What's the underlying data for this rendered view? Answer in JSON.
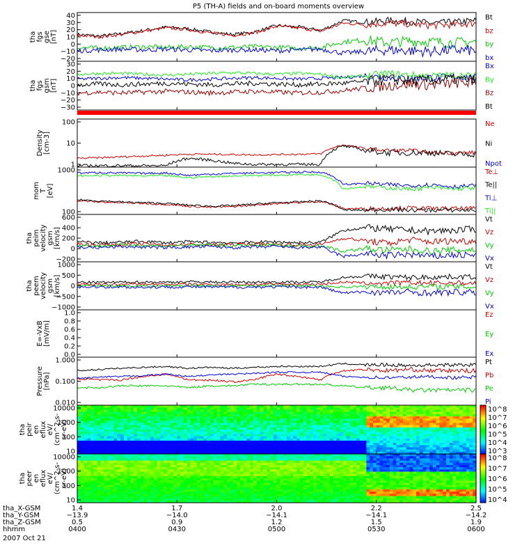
{
  "title": "P5 (TH-A) fields and on-board moments overview",
  "date_label": "2007 Oct 21",
  "colors": {
    "black": "#000000",
    "red": "#cc0000",
    "green": "#00cc00",
    "blue": "#0000dd",
    "darkred": "#990000",
    "bright_green": "#22ee22",
    "separator": "#ff0000"
  },
  "chart_data": [
    {
      "id": "fgs_gse",
      "type": "line",
      "ylabel": [
        "tha",
        "fgs",
        "gse",
        "[nT]"
      ],
      "ylim": [
        -20,
        40
      ],
      "yticks": [
        "40",
        "30",
        "20",
        "10",
        "0",
        "−10",
        "−20"
      ],
      "series": [
        {
          "name": "Bt",
          "color": "#000000",
          "baseline": [
            13,
            11,
            14,
            18,
            22,
            20,
            16,
            13,
            16,
            24,
            22,
            18,
            30,
            28,
            30,
            29,
            27,
            28,
            30
          ],
          "jitter": 2
        },
        {
          "name": "bz",
          "color": "#cc0000",
          "baseline": [
            12,
            10,
            13,
            17,
            21,
            19,
            15,
            12,
            15,
            23,
            21,
            17,
            27,
            25,
            27,
            26,
            24,
            25,
            27
          ],
          "jitter": 2
        },
        {
          "name": "by",
          "color": "#00cc00",
          "baseline": [
            -3,
            -4,
            -3,
            -2,
            -3,
            -2,
            -3,
            -3,
            -2,
            -3,
            -4,
            -3,
            4,
            6,
            3,
            5,
            4,
            3,
            4
          ],
          "jitter": 3
        },
        {
          "name": "bx",
          "color": "#0000dd",
          "baseline": [
            -7,
            -6,
            -5,
            -6,
            -5,
            -6,
            -7,
            -6,
            -6,
            -7,
            -6,
            -5,
            -10,
            -8,
            -6,
            -7,
            -8,
            -6,
            -7
          ],
          "jitter": 3
        }
      ]
    },
    {
      "id": "fgs_gsm",
      "type": "line",
      "ylabel": [
        "tha",
        "fgs",
        "gsm",
        "[nT]"
      ],
      "ylim": [
        -30,
        30
      ],
      "yticks": [
        "30",
        "20",
        "10",
        "0",
        "−10",
        "−20",
        "−30"
      ],
      "series": [
        {
          "name": "Bx",
          "color": "#0000dd",
          "baseline": [
            8,
            9,
            10,
            9,
            8,
            7,
            8,
            9,
            10,
            9,
            8,
            9,
            10,
            12,
            10,
            9,
            10,
            11,
            10
          ],
          "jitter": 2
        },
        {
          "name": "By",
          "color": "#22ee22",
          "baseline": [
            14,
            15,
            15,
            14,
            13,
            14,
            15,
            16,
            15,
            14,
            15,
            14,
            10,
            12,
            15,
            13,
            12,
            13,
            12
          ],
          "jitter": 2
        },
        {
          "name": "Bz",
          "color": "#990000",
          "baseline": [
            -9,
            -8,
            -9,
            -8,
            -7,
            -8,
            -9,
            -8,
            -7,
            -8,
            -9,
            -8,
            -6,
            -3,
            0,
            2,
            1,
            3,
            4
          ],
          "jitter": 3
        },
        {
          "name": "Bt",
          "color": "#000000",
          "baseline": [
            1,
            2,
            1,
            2,
            3,
            2,
            1,
            2,
            3,
            2,
            1,
            2,
            3,
            5,
            8,
            6,
            7,
            8,
            7
          ],
          "jitter": 3
        }
      ]
    },
    {
      "id": "density",
      "type": "line",
      "log": true,
      "ylabel": [
        "Density",
        "[cm-3]"
      ],
      "ylim": [
        0.5,
        200
      ],
      "yticks": [
        "100",
        "10",
        "1"
      ],
      "series": [
        {
          "name": "Ne",
          "color": "#cc0000",
          "baseline": [
            1.5,
            1.6,
            1.8,
            2.0,
            2.2,
            2.5,
            2.5,
            2.4,
            2.3,
            2.4,
            2.5,
            2.6,
            8,
            5,
            4,
            4,
            3,
            3,
            3
          ],
          "jitter": 0.1
        },
        {
          "name": "Ni",
          "color": "#000000",
          "baseline": [
            0.6,
            0.6,
            0.6,
            0.6,
            0.6,
            1.5,
            1.2,
            0.8,
            0.7,
            0.7,
            0.7,
            0.7,
            7,
            4,
            3,
            3,
            3,
            2.5,
            2.5
          ],
          "jitter": 0.15
        },
        {
          "name": "Npot",
          "color": "#0000dd",
          "baseline": [],
          "jitter": 0
        }
      ]
    },
    {
      "id": "temperature",
      "type": "line",
      "log": true,
      "ylabel": [
        "mom",
        "T",
        "[eV]"
      ],
      "ylim": [
        30,
        8000
      ],
      "yticks": [
        "1000",
        "100"
      ],
      "series": [
        {
          "name": "Te⊥",
          "color": "#cc0000",
          "baseline": [
            150,
            130,
            120,
            110,
            100,
            80,
            70,
            75,
            90,
            110,
            120,
            140,
            60,
            60,
            60,
            65,
            60,
            60,
            60
          ],
          "jitter": 0.1
        },
        {
          "name": "Te||",
          "color": "#000000",
          "baseline": [
            170,
            150,
            130,
            120,
            110,
            90,
            80,
            85,
            100,
            120,
            130,
            150,
            50,
            50,
            55,
            50,
            50,
            50,
            50
          ],
          "jitter": 0.1
        },
        {
          "name": "Ti⊥",
          "color": "#0000dd",
          "baseline": [
            4000,
            4200,
            4000,
            3800,
            4000,
            3000,
            3500,
            3800,
            4000,
            4200,
            4400,
            4500,
            1000,
            1200,
            1000,
            900,
            1000,
            800,
            900
          ],
          "jitter": 0.1
        },
        {
          "name": "Ti||",
          "color": "#22ee22",
          "baseline": [
            2800,
            3000,
            3000,
            2800,
            2900,
            2300,
            2600,
            2800,
            3000,
            3100,
            3300,
            3300,
            600,
            800,
            700,
            600,
            700,
            600,
            700
          ],
          "jitter": 0.1
        }
      ]
    },
    {
      "id": "peim_velocity",
      "type": "line",
      "ylabel": [
        "tha",
        "peim",
        "velocity",
        "gsm",
        "[km/s]"
      ],
      "ylim": [
        -300,
        600
      ],
      "yticks": [
        "600",
        "400",
        "200",
        "0",
        "−200"
      ],
      "series": [
        {
          "name": "Vt",
          "color": "#000000",
          "baseline": [
            80,
            60,
            70,
            90,
            60,
            80,
            70,
            60,
            70,
            80,
            60,
            70,
            300,
            350,
            320,
            300,
            280,
            300,
            320
          ],
          "jitter": 30
        },
        {
          "name": "Vz",
          "color": "#cc0000",
          "baseline": [
            40,
            20,
            30,
            40,
            20,
            30,
            20,
            30,
            40,
            30,
            20,
            30,
            150,
            100,
            50,
            120,
            80,
            100,
            90
          ],
          "jitter": 30
        },
        {
          "name": "Vy",
          "color": "#00cc00",
          "baseline": [
            10,
            0,
            20,
            10,
            0,
            10,
            20,
            0,
            10,
            20,
            0,
            10,
            -100,
            -50,
            -80,
            -60,
            -100,
            -80,
            -70
          ],
          "jitter": 30
        },
        {
          "name": "Vx",
          "color": "#0000dd",
          "baseline": [
            -20,
            -30,
            -10,
            -20,
            -30,
            -20,
            -10,
            -30,
            -20,
            -10,
            -30,
            -20,
            -200,
            -150,
            -180,
            -160,
            -200,
            -170,
            -180
          ],
          "jitter": 30
        }
      ]
    },
    {
      "id": "peem_velocity",
      "type": "line",
      "ylabel": [
        "tha",
        "peem",
        "velocity",
        "gsm",
        "[km/s]"
      ],
      "ylim": [
        -1000,
        1000
      ],
      "yticks": [
        "1000",
        "500",
        "0",
        "−500",
        "−1000"
      ],
      "series": [
        {
          "name": "Vt",
          "color": "#000000",
          "baseline": [
            150,
            140,
            150,
            160,
            150,
            170,
            160,
            150,
            150,
            160,
            150,
            160,
            350,
            400,
            380,
            350,
            360,
            380,
            370
          ],
          "jitter": 50
        },
        {
          "name": "Vz",
          "color": "#cc0000",
          "baseline": [
            60,
            50,
            60,
            70,
            60,
            70,
            60,
            50,
            60,
            70,
            60,
            70,
            150,
            120,
            100,
            130,
            110,
            120,
            110
          ],
          "jitter": 50
        },
        {
          "name": "Vy",
          "color": "#00cc00",
          "baseline": [
            0,
            10,
            0,
            -10,
            0,
            10,
            0,
            -10,
            0,
            10,
            0,
            -10,
            -50,
            -30,
            -40,
            -50,
            -30,
            -40,
            -50
          ],
          "jitter": 50
        },
        {
          "name": "Vx",
          "color": "#0000dd",
          "baseline": [
            -50,
            -40,
            -50,
            -60,
            -50,
            -40,
            -50,
            -60,
            -50,
            -40,
            -50,
            -60,
            -300,
            -250,
            -280,
            -260,
            -300,
            -270,
            -280
          ],
          "jitter": 60
        }
      ]
    },
    {
      "id": "efield",
      "type": "line",
      "ylabel": [
        "E=-VxB",
        "[mV/m]"
      ],
      "ylim": [
        0,
        1
      ],
      "yticks": [
        "1.0",
        "0.8",
        "0.6",
        "0.4",
        "0.2",
        "0.0"
      ],
      "series": [
        {
          "name": "Ez",
          "color": "#cc0000",
          "baseline": [],
          "jitter": 0
        },
        {
          "name": "Ey",
          "color": "#00cc00",
          "baseline": [],
          "jitter": 0
        },
        {
          "name": "Ex",
          "color": "#0000dd",
          "baseline": [],
          "jitter": 0
        }
      ]
    },
    {
      "id": "pressure",
      "type": "line",
      "log": true,
      "ylabel": [
        "Pressure",
        "[nPa]"
      ],
      "ylim": [
        0.005,
        1.5
      ],
      "yticks": [
        "1.000",
        "0.100",
        "0.010"
      ],
      "series": [
        {
          "name": "Pt",
          "color": "#000000",
          "baseline": [
            0.3,
            0.35,
            0.4,
            0.45,
            0.5,
            0.4,
            0.45,
            0.4,
            0.45,
            0.5,
            0.5,
            0.5,
            0.7,
            0.6,
            0.6,
            0.55,
            0.6,
            0.6,
            0.6
          ],
          "jitter": 0.08
        },
        {
          "name": "Pb",
          "color": "#cc0000",
          "baseline": [
            0.12,
            0.1,
            0.1,
            0.15,
            0.2,
            0.1,
            0.1,
            0.08,
            0.1,
            0.2,
            0.15,
            0.1,
            0.3,
            0.35,
            0.3,
            0.35,
            0.3,
            0.3,
            0.3
          ],
          "jitter": 0.1
        },
        {
          "name": "Pe",
          "color": "#00cc00",
          "baseline": [
            0.04,
            0.04,
            0.05,
            0.05,
            0.05,
            0.04,
            0.05,
            0.05,
            0.06,
            0.06,
            0.06,
            0.06,
            0.05,
            0.04,
            0.04,
            0.03,
            0.03,
            0.03,
            0.03
          ],
          "jitter": 0.1
        },
        {
          "name": "Pi",
          "color": "#0000dd",
          "baseline": [
            0.12,
            0.14,
            0.15,
            0.17,
            0.2,
            0.15,
            0.18,
            0.2,
            0.22,
            0.25,
            0.25,
            0.25,
            0.15,
            0.14,
            0.13,
            0.14,
            0.15,
            0.13,
            0.14
          ],
          "jitter": 0.08
        }
      ]
    },
    {
      "id": "peir_spec",
      "type": "heatmap",
      "ylabel": [
        "tha",
        "peir",
        "en",
        "eflux",
        "eV/",
        "(cm^2-s-",
        "sr-eV)"
      ],
      "yticks": [
        "10000",
        "1000",
        "100",
        "10"
      ],
      "colorbar_ticks": [
        "10^8",
        "10^7",
        "10^6",
        "10^5",
        "10^4",
        "10^3"
      ]
    },
    {
      "id": "peer_spec",
      "type": "heatmap",
      "ylabel": [
        "tha",
        "peer",
        "en",
        "eflux",
        "eV/",
        "(cm^2-s-",
        "sr-eV)"
      ],
      "yticks": [
        "10000",
        "1000",
        "100",
        "10"
      ],
      "colorbar_ticks": [
        "10^8",
        "10^7",
        "10^6",
        "10^5",
        "10^4"
      ]
    }
  ],
  "time_axis": {
    "labels": [
      "tha_X-GSM",
      "tha_Y-GSM",
      "tha_Z-GSM",
      "hhmm"
    ],
    "columns": [
      [
        "1.4",
        "−13.9",
        "0.5",
        "0400"
      ],
      [
        "1.7",
        "−14.0",
        "0.9",
        "0430"
      ],
      [
        "2.0",
        "−14.1",
        "1.2",
        "0500"
      ],
      [
        "2.2",
        "−14.1",
        "1.5",
        "0530"
      ],
      [
        "2.5",
        "−14.2",
        "1.9",
        "0600"
      ]
    ]
  }
}
